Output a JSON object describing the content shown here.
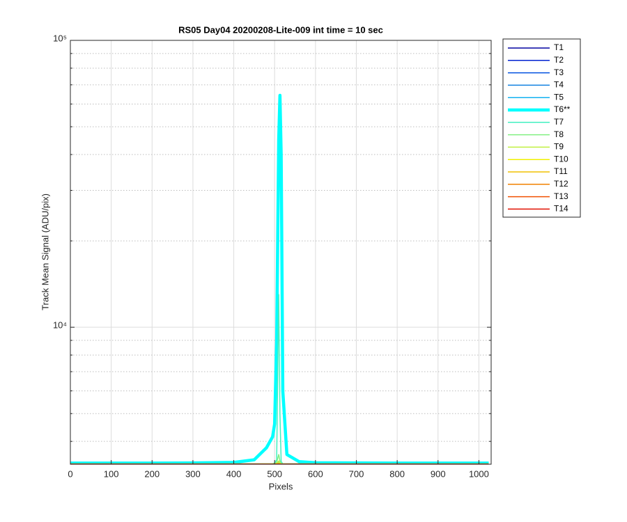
{
  "chart_data": {
    "type": "line",
    "title": "RS05 Day04 20200208-Lite-009 int time = 10 sec",
    "xlabel": "Pixels",
    "ylabel": "Track Mean Signal (ADU/pix)",
    "yscale": "log",
    "grid": true,
    "legend": "outside-right",
    "xlim": [
      0,
      1030
    ],
    "ylim": [
      3330,
      100000
    ],
    "xticks": [
      0,
      100,
      200,
      300,
      400,
      500,
      600,
      700,
      800,
      900,
      1000
    ],
    "yticks": [
      {
        "value": 10000,
        "label": "10⁴"
      },
      {
        "value": 100000,
        "label": "10⁵"
      }
    ],
    "yminorticks": [
      4000,
      5000,
      6000,
      7000,
      8000,
      9000,
      20000,
      30000,
      40000,
      50000,
      60000,
      70000,
      80000,
      90000
    ],
    "x": [
      0,
      100,
      200,
      300,
      400,
      450,
      480,
      495,
      500,
      505,
      510,
      513,
      516,
      520,
      530,
      560,
      600,
      800,
      1000,
      1024
    ],
    "series": [
      {
        "name": "T1",
        "color": "#0000a0",
        "width": 1.5,
        "values": [
          3335,
          3335,
          3335,
          3335,
          3335,
          3335,
          3335,
          3335,
          3336,
          3338,
          3340,
          3338,
          3336,
          3335,
          3335,
          3335,
          3335,
          3335,
          3335,
          3335
        ]
      },
      {
        "name": "T2",
        "color": "#0022d0",
        "width": 1.5,
        "values": [
          3336,
          3336,
          3336,
          3336,
          3336,
          3336,
          3336,
          3336,
          3337,
          3339,
          3342,
          3339,
          3337,
          3336,
          3336,
          3336,
          3336,
          3336,
          3336,
          3336
        ]
      },
      {
        "name": "T3",
        "color": "#0050e0",
        "width": 1.5,
        "values": [
          3337,
          3337,
          3337,
          3337,
          3337,
          3337,
          3337,
          3337,
          3338,
          3340,
          3344,
          3340,
          3338,
          3337,
          3337,
          3337,
          3337,
          3337,
          3337,
          3337
        ]
      },
      {
        "name": "T4",
        "color": "#1080e0",
        "width": 1.5,
        "values": [
          3338,
          3338,
          3338,
          3338,
          3338,
          3338,
          3338,
          3338,
          3339,
          3342,
          3348,
          3342,
          3339,
          3338,
          3338,
          3338,
          3338,
          3338,
          3338,
          3338
        ]
      },
      {
        "name": "T5",
        "color": "#10b0f0",
        "width": 1.5,
        "values": [
          3340,
          3340,
          3340,
          3340,
          3340,
          3340,
          3340,
          3341,
          3343,
          3350,
          3370,
          3350,
          3343,
          3341,
          3340,
          3340,
          3340,
          3340,
          3340,
          3340
        ]
      },
      {
        "name": "T6**",
        "color": "#00ffff",
        "width": 4.5,
        "values": [
          3360,
          3360,
          3360,
          3365,
          3380,
          3450,
          3800,
          4150,
          4600,
          9000,
          45000,
          64300,
          40000,
          6000,
          3600,
          3400,
          3370,
          3360,
          3360,
          3360
        ]
      },
      {
        "name": "T7",
        "color": "#40f0c0",
        "width": 1.5,
        "values": [
          3340,
          3340,
          3340,
          3340,
          3340,
          3340,
          3342,
          3345,
          3360,
          3450,
          13000,
          5000,
          3400,
          3345,
          3340,
          3340,
          3340,
          3340,
          3340,
          3340
        ]
      },
      {
        "name": "T8",
        "color": "#80f080",
        "width": 1.5,
        "values": [
          3338,
          3338,
          3338,
          3338,
          3338,
          3338,
          3339,
          3340,
          3345,
          3380,
          3600,
          3420,
          3350,
          3340,
          3338,
          3338,
          3338,
          3338,
          3338,
          3338
        ]
      },
      {
        "name": "T9",
        "color": "#c0f040",
        "width": 1.5,
        "values": [
          3337,
          3337,
          3337,
          3337,
          3337,
          3337,
          3337,
          3338,
          3340,
          3350,
          3420,
          3360,
          3340,
          3338,
          3337,
          3337,
          3337,
          3337,
          3337,
          3337
        ]
      },
      {
        "name": "T10",
        "color": "#f0f000",
        "width": 1.5,
        "values": [
          3336,
          3336,
          3336,
          3336,
          3336,
          3336,
          3336,
          3336,
          3337,
          3340,
          3360,
          3342,
          3337,
          3336,
          3336,
          3336,
          3336,
          3336,
          3336,
          3336
        ]
      },
      {
        "name": "T11",
        "color": "#f0c000",
        "width": 1.5,
        "values": [
          3335,
          3335,
          3335,
          3335,
          3335,
          3335,
          3335,
          3335,
          3336,
          3338,
          3345,
          3338,
          3336,
          3335,
          3335,
          3335,
          3335,
          3335,
          3335,
          3335
        ]
      },
      {
        "name": "T12",
        "color": "#f08000",
        "width": 1.5,
        "values": [
          3334,
          3334,
          3334,
          3334,
          3334,
          3334,
          3334,
          3334,
          3335,
          3336,
          3340,
          3336,
          3335,
          3334,
          3334,
          3334,
          3334,
          3334,
          3334,
          3334
        ]
      },
      {
        "name": "T13",
        "color": "#f05000",
        "width": 1.5,
        "values": [
          3333,
          3333,
          3333,
          3333,
          3333,
          3333,
          3333,
          3333,
          3333,
          3334,
          3336,
          3334,
          3333,
          3333,
          3333,
          3333,
          3333,
          3333,
          3333,
          3333
        ]
      },
      {
        "name": "T14",
        "color": "#e01000",
        "width": 1.5,
        "values": [
          3332,
          3332,
          3332,
          3332,
          3332,
          3332,
          3332,
          3332,
          3332,
          3332,
          3333,
          3332,
          3332,
          3332,
          3332,
          3332,
          3332,
          3332,
          3332,
          3332
        ]
      }
    ]
  }
}
